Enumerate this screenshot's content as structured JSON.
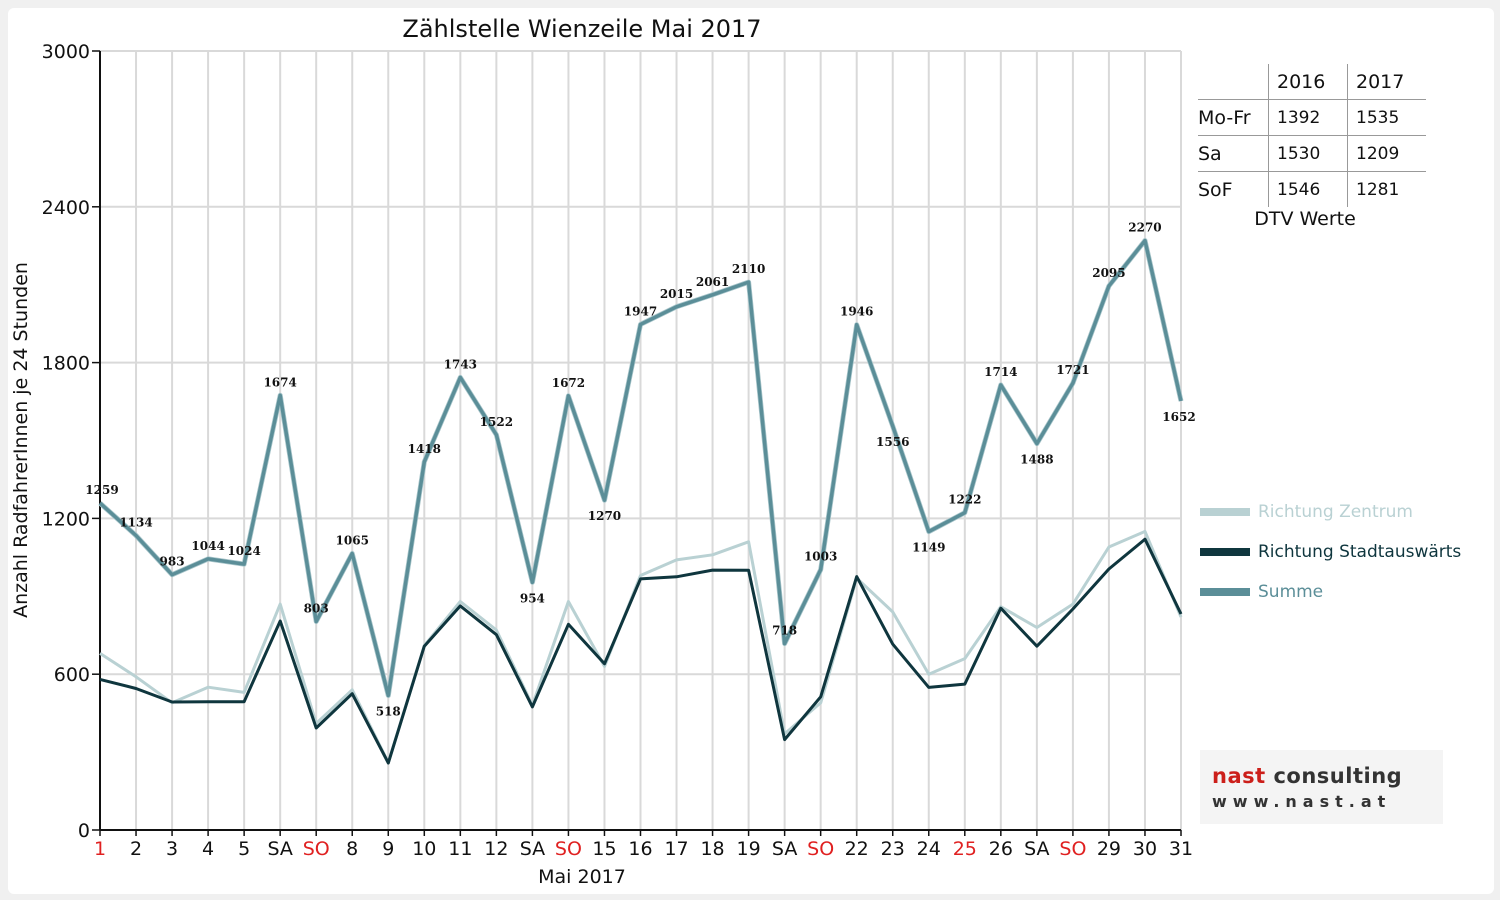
{
  "chart_data": {
    "type": "line",
    "title": "Zählstelle Wienzeile Mai 2017",
    "xlabel": "Mai 2017",
    "ylabel": "Anzahl RadfahrerInnen je 24 Stunden",
    "ylim": [
      0,
      3000
    ],
    "yticks": [
      0,
      600,
      1200,
      1800,
      2400,
      3000
    ],
    "grid": true,
    "legend_position": "right",
    "categories": [
      "1",
      "2",
      "3",
      "4",
      "5",
      "SA",
      "SO",
      "8",
      "9",
      "10",
      "11",
      "12",
      "SA",
      "SO",
      "15",
      "16",
      "17",
      "18",
      "19",
      "SA",
      "SO",
      "22",
      "23",
      "24",
      "25",
      "26",
      "SA",
      "SO",
      "29",
      "30",
      "31"
    ],
    "red_categories": [
      0,
      6,
      13,
      20,
      24,
      27
    ],
    "series": [
      {
        "name": "Richtung Zentrum",
        "color": "#b9d1d3",
        "values": [
          680,
          590,
          490,
          550,
          530,
          870,
          410,
          540,
          260,
          710,
          880,
          770,
          480,
          880,
          630,
          980,
          1040,
          1060,
          1110,
          370,
          490,
          970,
          840,
          600,
          660,
          860,
          780,
          870,
          1090,
          1150,
          820
        ]
      },
      {
        "name": "Richtung Stadtauswärts",
        "color": "#0f363e",
        "values": [
          580,
          545,
          493,
          494,
          494,
          805,
          393,
          525,
          258,
          708,
          863,
          752,
          474,
          792,
          640,
          967,
          975,
          1001,
          1000,
          348,
          513,
          976,
          716,
          549,
          562,
          854,
          708,
          851,
          1005,
          1120,
          832
        ]
      },
      {
        "name": "Summe",
        "color": "#5b8e98",
        "values": [
          1259,
          1134,
          983,
          1044,
          1024,
          1674,
          803,
          1065,
          518,
          1418,
          1743,
          1522,
          954,
          1672,
          1270,
          1947,
          2015,
          2061,
          2110,
          718,
          1003,
          1946,
          1556,
          1149,
          1222,
          1714,
          1488,
          1721,
          2095,
          2270,
          1652
        ]
      }
    ]
  },
  "dtv": {
    "header": [
      "",
      "2016",
      "2017"
    ],
    "rows": [
      {
        "label": "Mo-Fr",
        "v2016": "1392",
        "v2017": "1535"
      },
      {
        "label": "Sa",
        "v2016": "1530",
        "v2017": "1209"
      },
      {
        "label": "SoF",
        "v2016": "1546",
        "v2017": "1281"
      }
    ],
    "caption": "DTV Werte"
  },
  "logo": {
    "part1": "nast",
    "part2": "consulting",
    "part1_color": "#cc1f1a",
    "part2_color": "#333333",
    "url": "www.nast.at"
  }
}
